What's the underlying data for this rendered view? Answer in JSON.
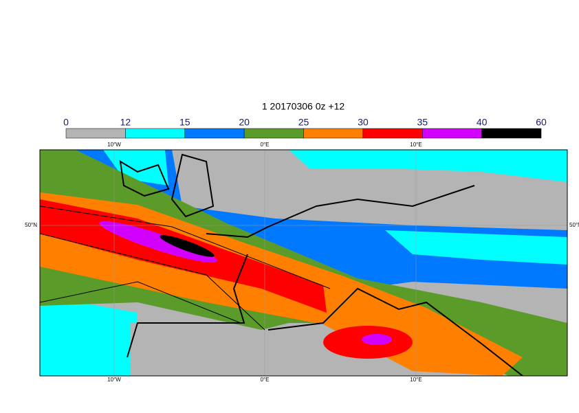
{
  "title": "1 20170306 0z +12",
  "colorbar": {
    "ticks": [
      0,
      12,
      15,
      20,
      25,
      30,
      35,
      40,
      60
    ],
    "colors": [
      "#b4b4b4",
      "#00ffff",
      "#0078ff",
      "#5a9b2a",
      "#ff8000",
      "#ff0000",
      "#d200ff",
      "#000000"
    ]
  },
  "map": {
    "lon_labels": [
      "10°W",
      "0°E",
      "10°E"
    ],
    "lat_labels": [
      "50°N"
    ]
  }
}
